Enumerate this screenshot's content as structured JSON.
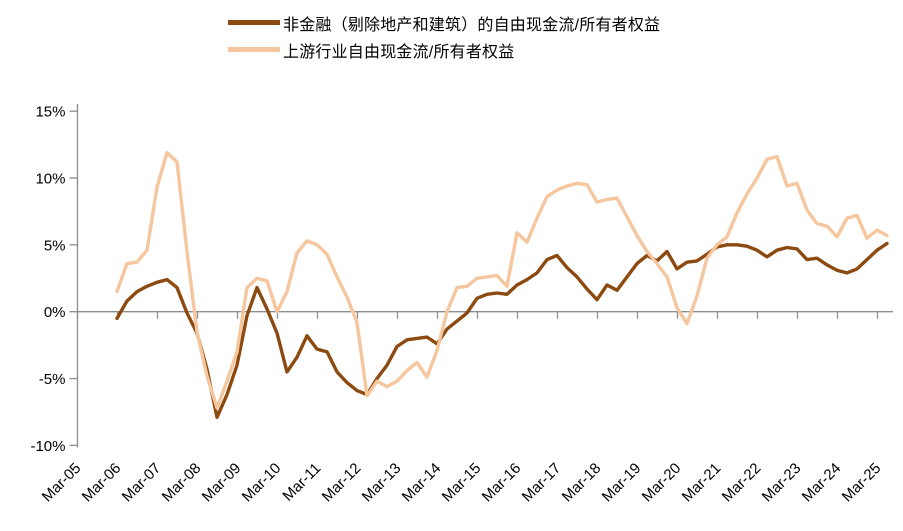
{
  "chart_data": {
    "type": "line",
    "title": "",
    "x_frequency": "quarterly",
    "x_range": [
      "Mar-06",
      "Jun-25"
    ],
    "x_tick_labels": [
      "Mar-05",
      "Mar-06",
      "Mar-07",
      "Mar-08",
      "Mar-09",
      "Mar-10",
      "Mar-11",
      "Mar-12",
      "Mar-13",
      "Mar-14",
      "Mar-15",
      "Mar-16",
      "Mar-17",
      "Mar-18",
      "Mar-19",
      "Mar-20",
      "Mar-21",
      "Mar-22",
      "Mar-23",
      "Mar-24",
      "Mar-25"
    ],
    "ylim": [
      -10,
      15
    ],
    "grid": "off",
    "legend_position": "top",
    "axis_color": "#8c8c8c",
    "y_ticks": [
      {
        "label": "15%",
        "value": 15
      },
      {
        "label": "10%",
        "value": 10
      },
      {
        "label": "5%",
        "value": 5
      },
      {
        "label": "0%",
        "value": 0
      },
      {
        "label": "-5%",
        "value": -5
      },
      {
        "label": "-10%",
        "value": -10
      }
    ],
    "series": [
      {
        "id": "nonfinancial",
        "name": "非金融（剔除地产和建筑）的自由现金流/所有者权益",
        "color": "#8C4A10",
        "values": [
          -0.5,
          0.8,
          1.5,
          1.9,
          2.2,
          2.4,
          1.8,
          -0.1,
          -1.6,
          -4.3,
          -7.9,
          -6.2,
          -4.0,
          -0.3,
          1.8,
          0.2,
          -1.6,
          -4.5,
          -3.4,
          -1.8,
          -2.8,
          -3.0,
          -4.5,
          -5.3,
          -5.9,
          -6.2,
          -5.0,
          -4.0,
          -2.6,
          -2.1,
          -2.0,
          -1.9,
          -2.4,
          -1.3,
          -0.7,
          -0.1,
          1.0,
          1.3,
          1.4,
          1.3,
          2.0,
          2.4,
          2.9,
          3.9,
          4.2,
          3.3,
          2.6,
          1.7,
          0.9,
          2.0,
          1.6,
          2.6,
          3.6,
          4.2,
          3.8,
          4.5,
          3.2,
          3.7,
          3.8,
          4.3,
          4.85,
          5.0,
          5.0,
          4.9,
          4.6,
          4.1,
          4.6,
          4.8,
          4.7,
          3.9,
          4.0,
          3.5,
          3.1,
          2.9,
          3.2,
          3.9,
          4.6,
          5.1
        ]
      },
      {
        "id": "upstream",
        "name": "上游行业自由现金流/所有者权益",
        "color": "#F6C69E",
        "values": [
          1.5,
          3.6,
          3.7,
          4.6,
          9.3,
          11.9,
          11.2,
          4.5,
          -1.5,
          -4.8,
          -7.2,
          -5.2,
          -3.0,
          1.8,
          2.5,
          2.3,
          0.0,
          1.5,
          4.4,
          5.3,
          5.0,
          4.3,
          2.6,
          1.1,
          -0.8,
          -6.3,
          -5.2,
          -5.6,
          -5.2,
          -4.4,
          -3.8,
          -4.9,
          -2.9,
          0.0,
          1.8,
          1.9,
          2.5,
          2.6,
          2.7,
          1.9,
          5.9,
          5.2,
          7.0,
          8.6,
          9.1,
          9.4,
          9.6,
          9.5,
          8.2,
          8.4,
          8.5,
          7.1,
          5.7,
          4.5,
          3.6,
          2.6,
          0.3,
          -0.9,
          1.2,
          4.0,
          5.0,
          5.6,
          7.4,
          8.8,
          10.0,
          11.4,
          11.6,
          9.4,
          9.6,
          7.6,
          6.6,
          6.4,
          5.6,
          7.0,
          7.2,
          5.5,
          6.1,
          5.7
        ]
      }
    ]
  }
}
